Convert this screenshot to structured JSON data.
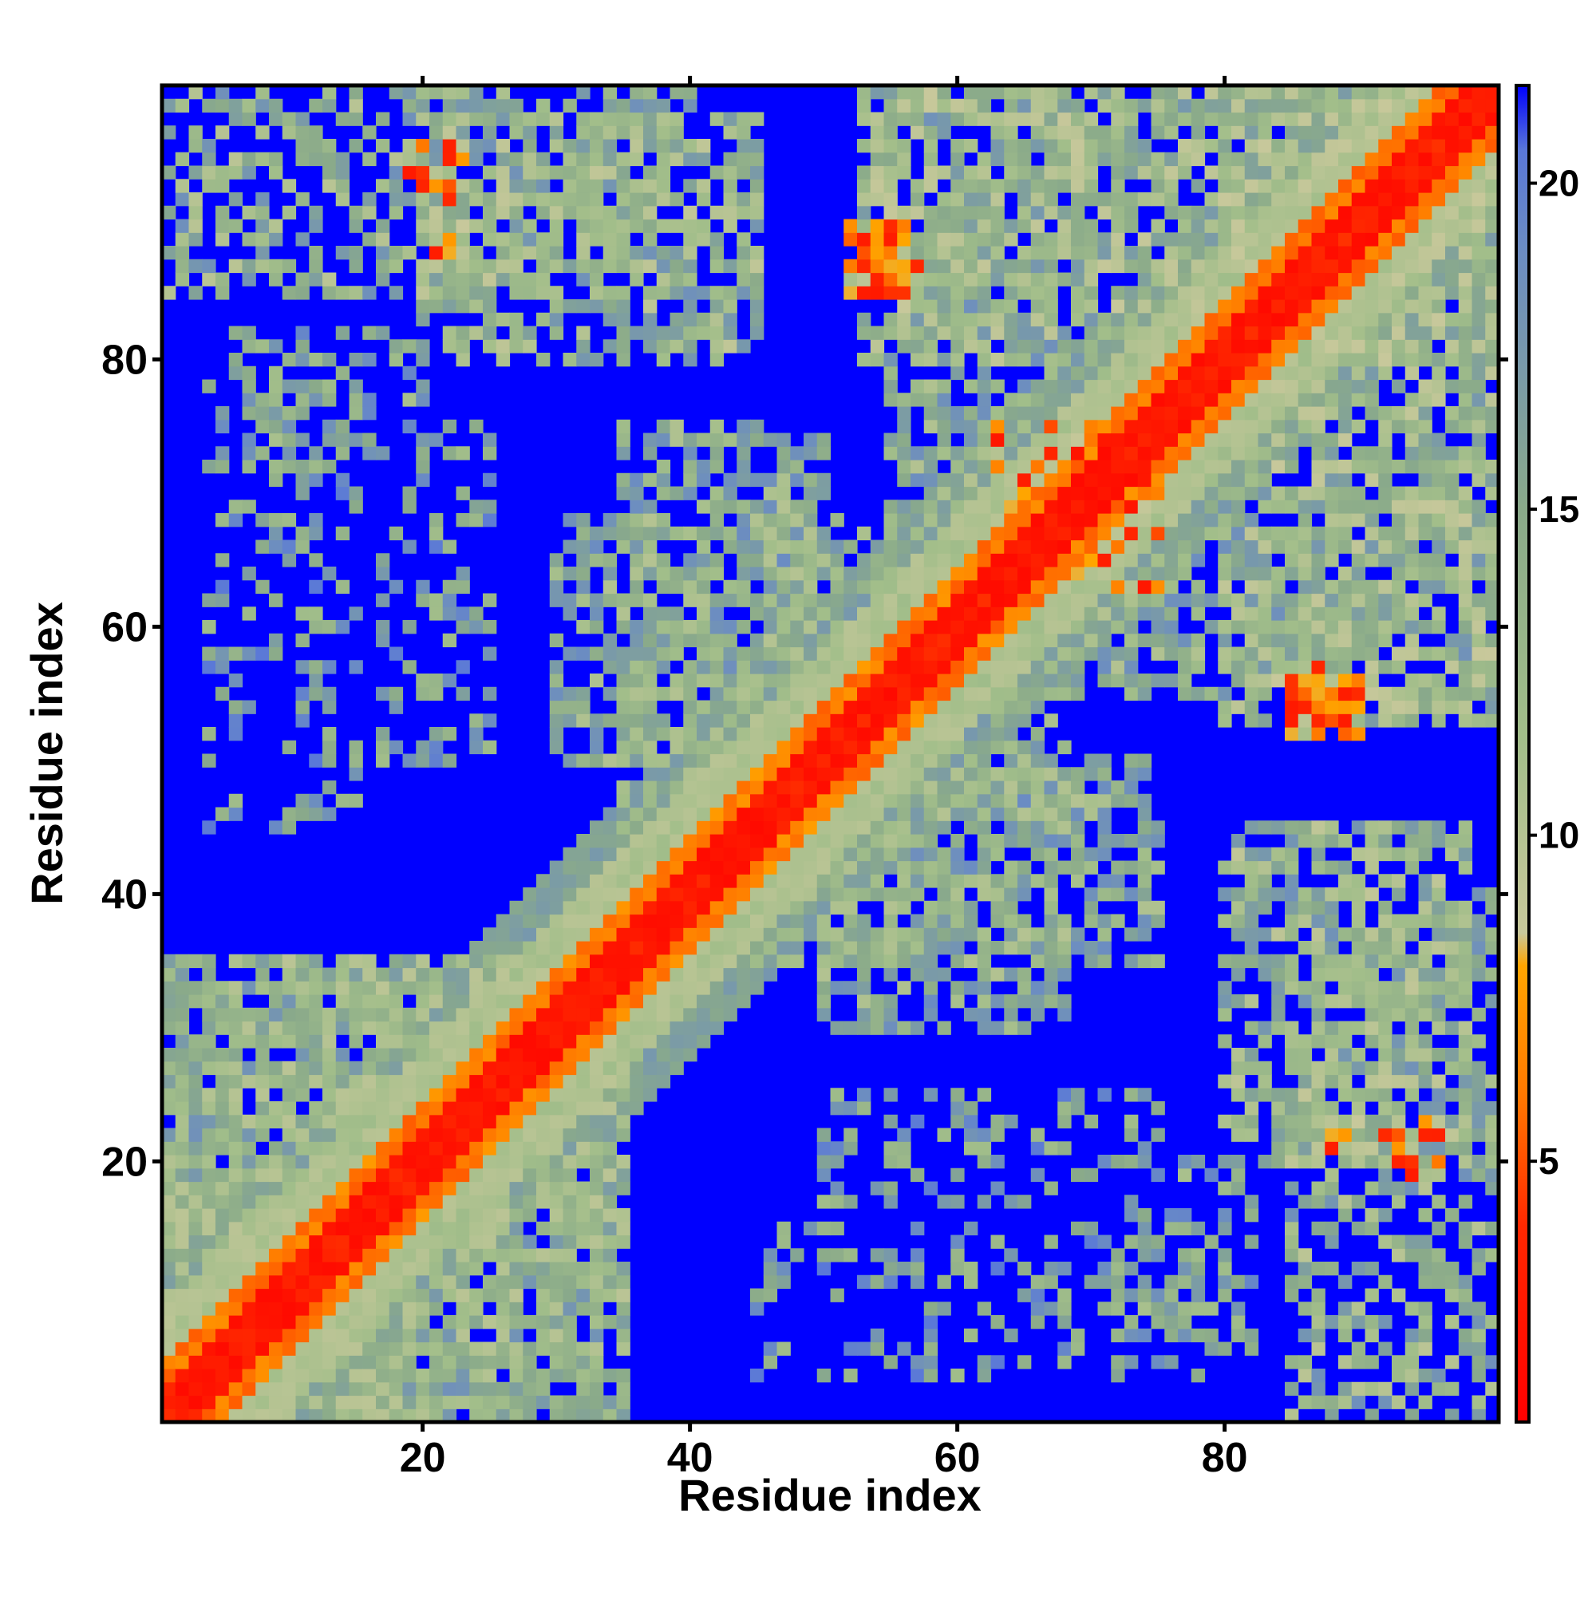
{
  "chart_data": {
    "type": "heatmap",
    "title": "",
    "xlabel": "Residue index",
    "ylabel": "Residue index",
    "xlim": [
      1,
      100
    ],
    "ylim": [
      1,
      100
    ],
    "x_ticks": [
      20,
      40,
      60,
      80
    ],
    "y_ticks": [
      20,
      40,
      60,
      80
    ],
    "n_residues": 100,
    "colorbar": {
      "range": [
        1,
        21.5
      ],
      "ticks": [
        5,
        10,
        15,
        20
      ],
      "gradient": [
        {
          "value": 1.0,
          "color": "#ff0000"
        },
        {
          "value": 4.0,
          "color": "#ff2800"
        },
        {
          "value": 6.0,
          "color": "#ff7800"
        },
        {
          "value": 8.0,
          "color": "#ffa500"
        },
        {
          "value": 8.5,
          "color": "#c8c89b"
        },
        {
          "value": 11.5,
          "color": "#a2be8a"
        },
        {
          "value": 15.0,
          "color": "#8aaa8a"
        },
        {
          "value": 19.0,
          "color": "#6b8cc3"
        },
        {
          "value": 20.5,
          "color": "#5a78d8"
        },
        {
          "value": 21.5,
          "color": "#0000ff"
        }
      ]
    },
    "cell_value_categories": [
      {
        "range": "<= 4",
        "color": "#ff0000",
        "description": "diagonal band"
      },
      {
        "range": "4-8",
        "color": "#ff8c00"
      },
      {
        "range": "8-13",
        "color": "#a9b98f"
      },
      {
        "range": "13-20",
        "color": "#6f8fc6"
      },
      {
        "range": "> 20",
        "color": "#0000ff"
      }
    ],
    "contact_bands": [
      {
        "i_range": [
          1,
          100
        ],
        "j_offset": [
          0,
          2
        ],
        "value": 3.0
      },
      {
        "i_range": [
          1,
          100
        ],
        "j_offset": [
          3,
          4
        ],
        "value": 6.5
      },
      {
        "i_range": [
          1,
          100
        ],
        "j_offset": [
          5,
          8
        ],
        "value": 11.0
      },
      {
        "i_range": [
          1,
          100
        ],
        "j_offset": [
          9,
          12
        ],
        "value": 16.5
      }
    ],
    "off_diagonal_clusters": [
      {
        "x_range": [
          1,
          35
        ],
        "y_range": [
          1,
          35
        ],
        "value": 14.0,
        "density": 0.7
      },
      {
        "x_range": [
          20,
          45
        ],
        "y_range": [
          80,
          98
        ],
        "value": 13.5,
        "density": 0.65
      },
      {
        "x_range": [
          53,
          100
        ],
        "y_range": [
          80,
          100
        ],
        "value": 13.0,
        "density": 0.7
      },
      {
        "x_range": [
          60,
          100
        ],
        "y_range": [
          55,
          70
        ],
        "value": 14.5,
        "density": 0.6
      },
      {
        "x_range": [
          30,
          55
        ],
        "y_range": [
          50,
          68
        ],
        "value": 14.5,
        "density": 0.6
      },
      {
        "x_range": [
          45,
          75
        ],
        "y_range": [
          35,
          50
        ],
        "value": 14.5,
        "density": 0.6
      },
      {
        "x_range": [
          85,
          100
        ],
        "y_range": [
          1,
          40
        ],
        "value": 14.0,
        "density": 0.6
      },
      {
        "x_range": [
          72,
          82
        ],
        "y_range": [
          5,
          20
        ],
        "value": 15.0,
        "density": 0.35
      },
      {
        "x_range": [
          50,
          75
        ],
        "y_range": [
          17,
          25
        ],
        "value": 16.0,
        "density": 0.3
      },
      {
        "x_range": [
          4,
          15
        ],
        "y_range": [
          45,
          80
        ],
        "value": 16.0,
        "density": 0.3
      },
      {
        "x_range": [
          64,
          75
        ],
        "y_range": [
          63,
          72
        ],
        "value": 7.0,
        "density": 0.4
      },
      {
        "x_range": [
          87,
          96
        ],
        "y_range": [
          19,
          23
        ],
        "value": 7.0,
        "density": 0.4
      },
      {
        "x_range": [
          52,
          56
        ],
        "y_range": [
          85,
          90
        ],
        "value": 6.5,
        "density": 0.7
      },
      {
        "x_range": [
          85,
          89
        ],
        "y_range": [
          52,
          57
        ],
        "value": 6.5,
        "density": 0.7
      },
      {
        "x_range": [
          20,
          23
        ],
        "y_range": [
          93,
          96
        ],
        "value": 7.0,
        "density": 0.5
      }
    ],
    "grid": false,
    "legend": "colorbar-right"
  }
}
